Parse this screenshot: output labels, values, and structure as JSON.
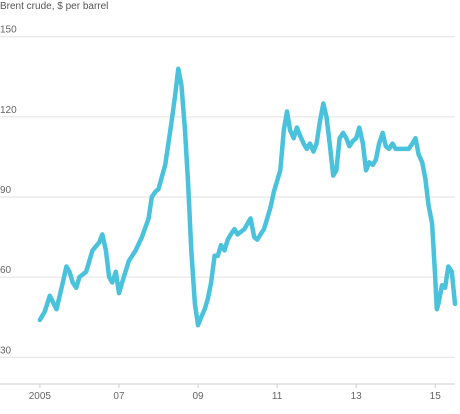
{
  "chart_data": {
    "type": "line",
    "title": "Brent crude, $ per barrel",
    "xlabel": "",
    "ylabel": "",
    "xlim": [
      2004.75,
      2015.5
    ],
    "ylim": [
      20,
      160
    ],
    "y_ticks": [
      {
        "value": 30,
        "label": "30"
      },
      {
        "value": 60,
        "label": "60"
      },
      {
        "value": 90,
        "label": "90"
      },
      {
        "value": 120,
        "label": "120"
      },
      {
        "value": 150,
        "label": "150"
      }
    ],
    "x_ticks": [
      {
        "value": 2005,
        "label": "2005"
      },
      {
        "value": 2007,
        "label": "07"
      },
      {
        "value": 2009,
        "label": "09"
      },
      {
        "value": 2011,
        "label": "11"
      },
      {
        "value": 2013,
        "label": "13"
      },
      {
        "value": 2015,
        "label": "15"
      }
    ],
    "grid": "horizontal",
    "legend": "none",
    "series": [
      {
        "color": "#4bc2db",
        "points": [
          [
            2005.0,
            44
          ],
          [
            2005.12,
            47
          ],
          [
            2005.25,
            53
          ],
          [
            2005.42,
            48
          ],
          [
            2005.58,
            58
          ],
          [
            2005.67,
            64
          ],
          [
            2005.75,
            62
          ],
          [
            2005.83,
            58
          ],
          [
            2005.92,
            56
          ],
          [
            2006.0,
            60
          ],
          [
            2006.17,
            62
          ],
          [
            2006.33,
            70
          ],
          [
            2006.5,
            73
          ],
          [
            2006.58,
            76
          ],
          [
            2006.67,
            70
          ],
          [
            2006.75,
            60
          ],
          [
            2006.83,
            58
          ],
          [
            2006.92,
            62
          ],
          [
            2007.0,
            54
          ],
          [
            2007.08,
            58
          ],
          [
            2007.25,
            66
          ],
          [
            2007.42,
            70
          ],
          [
            2007.58,
            75
          ],
          [
            2007.75,
            82
          ],
          [
            2007.83,
            90
          ],
          [
            2007.92,
            92
          ],
          [
            2008.0,
            93
          ],
          [
            2008.17,
            102
          ],
          [
            2008.33,
            118
          ],
          [
            2008.42,
            128
          ],
          [
            2008.5,
            138
          ],
          [
            2008.58,
            132
          ],
          [
            2008.67,
            115
          ],
          [
            2008.75,
            95
          ],
          [
            2008.83,
            70
          ],
          [
            2008.92,
            50
          ],
          [
            2009.0,
            42
          ],
          [
            2009.08,
            45
          ],
          [
            2009.17,
            48
          ],
          [
            2009.25,
            52
          ],
          [
            2009.33,
            58
          ],
          [
            2009.42,
            68
          ],
          [
            2009.5,
            68
          ],
          [
            2009.58,
            72
          ],
          [
            2009.67,
            70
          ],
          [
            2009.75,
            74
          ],
          [
            2009.83,
            76
          ],
          [
            2009.92,
            78
          ],
          [
            2010.0,
            76
          ],
          [
            2010.17,
            78
          ],
          [
            2010.33,
            82
          ],
          [
            2010.42,
            75
          ],
          [
            2010.5,
            74
          ],
          [
            2010.58,
            76
          ],
          [
            2010.67,
            78
          ],
          [
            2010.83,
            86
          ],
          [
            2010.92,
            92
          ],
          [
            2011.0,
            96
          ],
          [
            2011.08,
            100
          ],
          [
            2011.17,
            115
          ],
          [
            2011.25,
            122
          ],
          [
            2011.33,
            115
          ],
          [
            2011.42,
            112
          ],
          [
            2011.5,
            116
          ],
          [
            2011.58,
            113
          ],
          [
            2011.67,
            110
          ],
          [
            2011.75,
            108
          ],
          [
            2011.83,
            110
          ],
          [
            2011.92,
            107
          ],
          [
            2012.0,
            110
          ],
          [
            2012.08,
            118
          ],
          [
            2012.17,
            125
          ],
          [
            2012.25,
            120
          ],
          [
            2012.33,
            110
          ],
          [
            2012.42,
            98
          ],
          [
            2012.5,
            100
          ],
          [
            2012.58,
            112
          ],
          [
            2012.67,
            114
          ],
          [
            2012.75,
            112
          ],
          [
            2012.83,
            109
          ],
          [
            2012.92,
            111
          ],
          [
            2013.0,
            112
          ],
          [
            2013.08,
            116
          ],
          [
            2013.17,
            110
          ],
          [
            2013.25,
            100
          ],
          [
            2013.33,
            103
          ],
          [
            2013.42,
            102
          ],
          [
            2013.5,
            104
          ],
          [
            2013.58,
            110
          ],
          [
            2013.67,
            114
          ],
          [
            2013.75,
            109
          ],
          [
            2013.83,
            108
          ],
          [
            2013.92,
            110
          ],
          [
            2014.0,
            108
          ],
          [
            2014.17,
            108
          ],
          [
            2014.33,
            108
          ],
          [
            2014.42,
            110
          ],
          [
            2014.5,
            112
          ],
          [
            2014.58,
            106
          ],
          [
            2014.67,
            103
          ],
          [
            2014.75,
            97
          ],
          [
            2014.83,
            87
          ],
          [
            2014.92,
            80
          ],
          [
            2015.0,
            60
          ],
          [
            2015.04,
            48
          ],
          [
            2015.08,
            50
          ],
          [
            2015.17,
            57
          ],
          [
            2015.25,
            56
          ],
          [
            2015.33,
            64
          ],
          [
            2015.42,
            62
          ],
          [
            2015.5,
            50
          ]
        ]
      }
    ]
  }
}
